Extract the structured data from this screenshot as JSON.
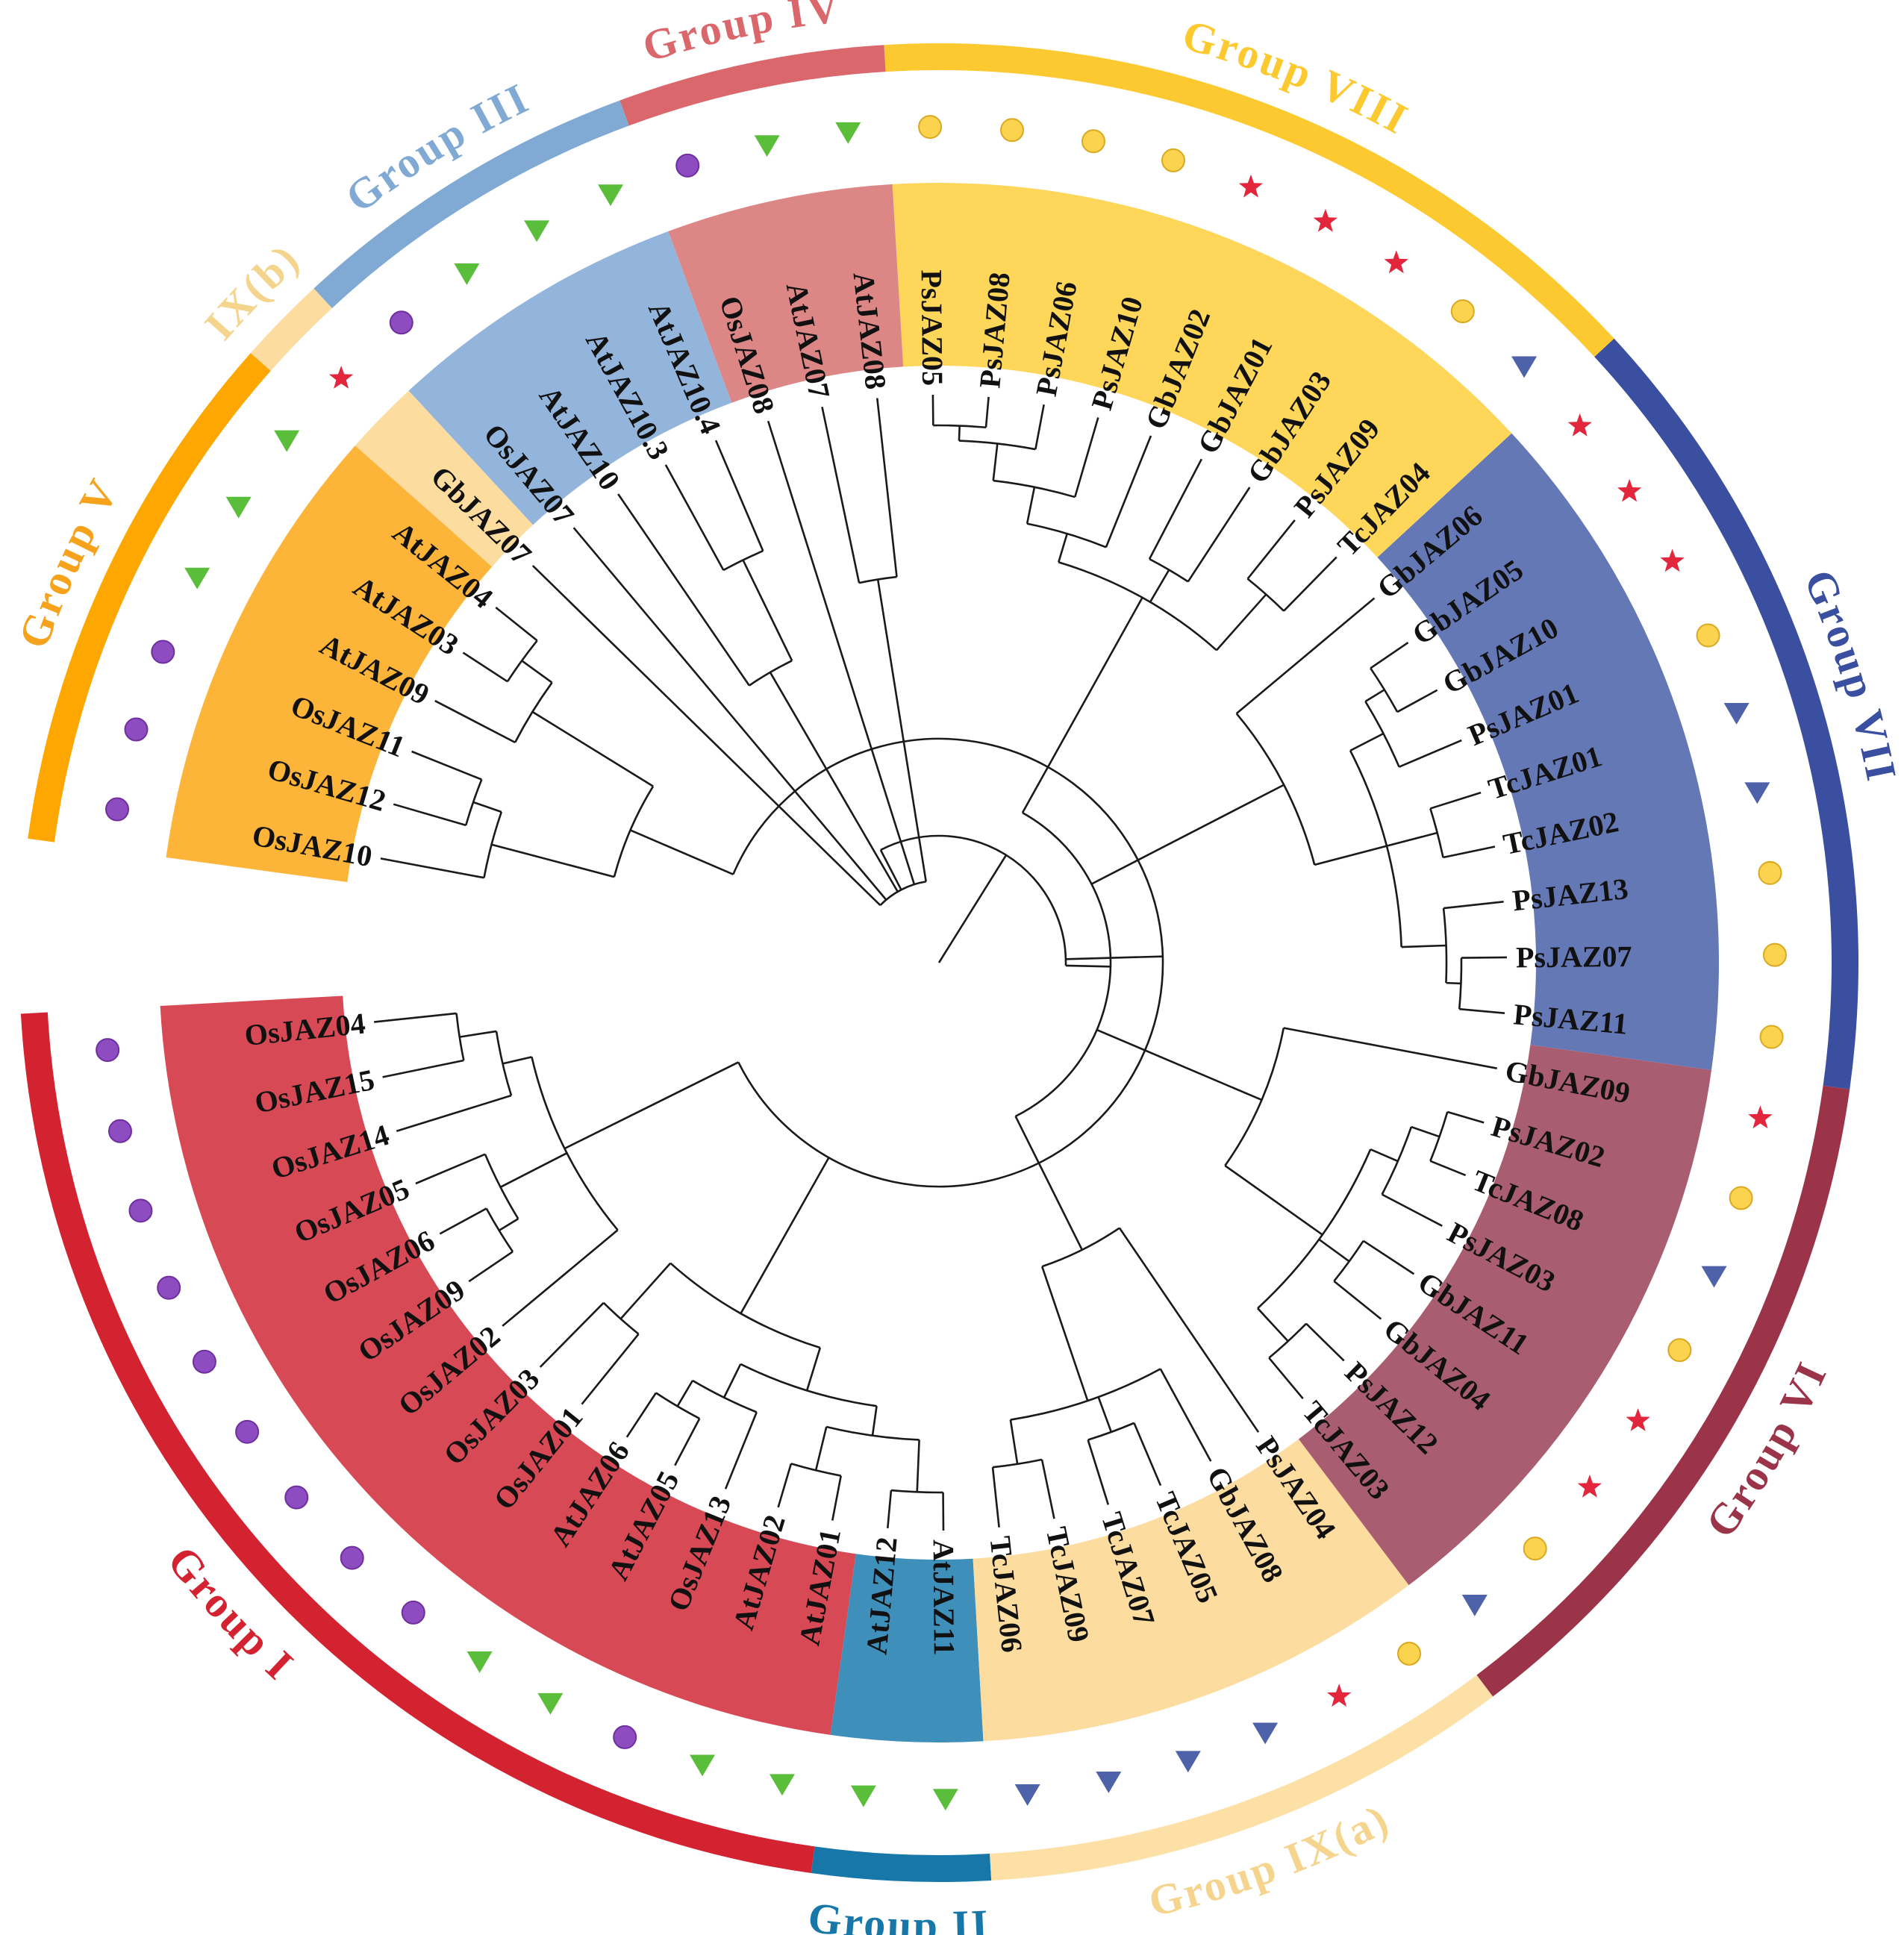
{
  "figure": {
    "type": "circular phylogenetic tree",
    "title": ""
  },
  "colors": {
    "group_I": "#d74a55",
    "group_I_outer": "#d32230",
    "group_II": "#3f8fbb",
    "group_II_outer": "#1777a8",
    "group_IXa": "#fcdc9f",
    "group_IXa_outer": "#fde0a6",
    "group_VI": "#a95d70",
    "group_VI_outer": "#9c3449",
    "group_VII": "#6578b6",
    "group_VII_outer": "#3a4f9f",
    "group_VIII": "#fdd65a",
    "group_VIII_outer": "#fcca30",
    "group_IV": "#dd8686",
    "group_IV_outer": "#d9676b",
    "group_III": "#93b5db",
    "group_III_outer": "#80aad4",
    "group_IXb": "#fcdc9f",
    "group_IXb_outer": "#fcdc9f",
    "group_V": "#fcb439",
    "group_V_outer": "#fda700",
    "group_V_label": "#f6a21c",
    "group_IXb_label": "#f5d48e",
    "group_IXa_label": "#f5d48e",
    "marker_circle": "#8e4cc1",
    "marker_circle_yellow": "#fbd34f",
    "marker_triangle_green": "#5bbe3a",
    "marker_triangle_blue": "#4e62a9",
    "marker_star": "#e2263c"
  },
  "groups": [
    {
      "key": "group_I",
      "label": "Group I"
    },
    {
      "key": "group_II",
      "label": "Group II"
    },
    {
      "key": "group_IXa",
      "label": "Group IX(a)"
    },
    {
      "key": "group_VI",
      "label": "Group VI"
    },
    {
      "key": "group_VII",
      "label": "Group VII"
    },
    {
      "key": "group_VIII",
      "label": "Group VIII"
    },
    {
      "key": "group_IV",
      "label": "Group IV"
    },
    {
      "key": "group_III",
      "label": "Group III"
    },
    {
      "key": "group_IXb",
      "label": "IX(b)"
    },
    {
      "key": "group_V",
      "label": "Group V"
    }
  ],
  "leaves": [
    {
      "name": "OsJAZ04",
      "group": "group_I",
      "marker": "circle_purple"
    },
    {
      "name": "OsJAZ15",
      "group": "group_I",
      "marker": "circle_purple"
    },
    {
      "name": "OsJAZ14",
      "group": "group_I",
      "marker": "circle_purple"
    },
    {
      "name": "OsJAZ05",
      "group": "group_I",
      "marker": "circle_purple"
    },
    {
      "name": "OsJAZ06",
      "group": "group_I",
      "marker": "circle_purple"
    },
    {
      "name": "OsJAZ09",
      "group": "group_I",
      "marker": "circle_purple"
    },
    {
      "name": "OsJAZ02",
      "group": "group_I",
      "marker": "circle_purple"
    },
    {
      "name": "OsJAZ03",
      "group": "group_I",
      "marker": "circle_purple"
    },
    {
      "name": "OsJAZ01",
      "group": "group_I",
      "marker": "circle_purple"
    },
    {
      "name": "AtJAZ06",
      "group": "group_I",
      "marker": "triangle_green"
    },
    {
      "name": "AtJAZ05",
      "group": "group_I",
      "marker": "triangle_green"
    },
    {
      "name": "OsJAZ13",
      "group": "group_I",
      "marker": "circle_purple"
    },
    {
      "name": "AtJAZ02",
      "group": "group_I",
      "marker": "triangle_green"
    },
    {
      "name": "AtJAZ01",
      "group": "group_I",
      "marker": "triangle_green"
    },
    {
      "name": "AtJAZ12",
      "group": "group_II",
      "marker": "triangle_green"
    },
    {
      "name": "AtJAZ11",
      "group": "group_II",
      "marker": "triangle_green"
    },
    {
      "name": "TcJAZ06",
      "group": "group_IXa",
      "marker": "triangle_blue"
    },
    {
      "name": "TcJAZ09",
      "group": "group_IXa",
      "marker": "triangle_blue"
    },
    {
      "name": "TcJAZ07",
      "group": "group_IXa",
      "marker": "triangle_blue"
    },
    {
      "name": "TcJAZ05",
      "group": "group_IXa",
      "marker": "triangle_blue"
    },
    {
      "name": "GbJAZ08",
      "group": "group_IXa",
      "marker": "star"
    },
    {
      "name": "PsJAZ04",
      "group": "group_IXa",
      "marker": "circle_yellow"
    },
    {
      "name": "TcJAZ03",
      "group": "group_VI",
      "marker": "triangle_blue"
    },
    {
      "name": "PsJAZ12",
      "group": "group_VI",
      "marker": "circle_yellow"
    },
    {
      "name": "GbJAZ04",
      "group": "group_VI",
      "marker": "star"
    },
    {
      "name": "GbJAZ11",
      "group": "group_VI",
      "marker": "star"
    },
    {
      "name": "PsJAZ03",
      "group": "group_VI",
      "marker": "circle_yellow"
    },
    {
      "name": "TcJAZ08",
      "group": "group_VI",
      "marker": "triangle_blue"
    },
    {
      "name": "PsJAZ02",
      "group": "group_VI",
      "marker": "circle_yellow"
    },
    {
      "name": "GbJAZ09",
      "group": "group_VI",
      "marker": "star"
    },
    {
      "name": "PsJAZ11",
      "group": "group_VII",
      "marker": "circle_yellow"
    },
    {
      "name": "PsJAZ07",
      "group": "group_VII",
      "marker": "circle_yellow"
    },
    {
      "name": "PsJAZ13",
      "group": "group_VII",
      "marker": "circle_yellow"
    },
    {
      "name": "TcJAZ02",
      "group": "group_VII",
      "marker": "triangle_blue"
    },
    {
      "name": "TcJAZ01",
      "group": "group_VII",
      "marker": "triangle_blue"
    },
    {
      "name": "PsJAZ01",
      "group": "group_VII",
      "marker": "circle_yellow"
    },
    {
      "name": "GbJAZ10",
      "group": "group_VII",
      "marker": "star"
    },
    {
      "name": "GbJAZ05",
      "group": "group_VII",
      "marker": "star"
    },
    {
      "name": "GbJAZ06",
      "group": "group_VII",
      "marker": "star"
    },
    {
      "name": "TcJAZ04",
      "group": "group_VIII",
      "marker": "triangle_blue"
    },
    {
      "name": "PsJAZ09",
      "group": "group_VIII",
      "marker": "circle_yellow"
    },
    {
      "name": "GbJAZ03",
      "group": "group_VIII",
      "marker": "star"
    },
    {
      "name": "GbJAZ01",
      "group": "group_VIII",
      "marker": "star"
    },
    {
      "name": "GbJAZ02",
      "group": "group_VIII",
      "marker": "star"
    },
    {
      "name": "PsJAZ10",
      "group": "group_VIII",
      "marker": "circle_yellow"
    },
    {
      "name": "PsJAZ06",
      "group": "group_VIII",
      "marker": "circle_yellow"
    },
    {
      "name": "PsJAZ08",
      "group": "group_VIII",
      "marker": "circle_yellow"
    },
    {
      "name": "PsJAZ05",
      "group": "group_VIII",
      "marker": "circle_yellow"
    },
    {
      "name": "AtJAZ08",
      "group": "group_IV",
      "marker": "triangle_green"
    },
    {
      "name": "AtJAZ07",
      "group": "group_IV",
      "marker": "triangle_green"
    },
    {
      "name": "OsJAZ08",
      "group": "group_IV",
      "marker": "circle_purple"
    },
    {
      "name": "AtJAZ10.4",
      "group": "group_III",
      "marker": "triangle_green"
    },
    {
      "name": "AtJAZ10.3",
      "group": "group_III",
      "marker": "triangle_green"
    },
    {
      "name": "AtJAZ10",
      "group": "group_III",
      "marker": "triangle_green"
    },
    {
      "name": "OsJAZ07",
      "group": "group_III",
      "marker": "circle_purple"
    },
    {
      "name": "GbJAZ07",
      "group": "group_IXb",
      "marker": "star"
    },
    {
      "name": "AtJAZ04",
      "group": "group_V",
      "marker": "triangle_green"
    },
    {
      "name": "AtJAZ03",
      "group": "group_V",
      "marker": "triangle_green"
    },
    {
      "name": "AtJAZ09",
      "group": "group_V",
      "marker": "triangle_green"
    },
    {
      "name": "OsJAZ11",
      "group": "group_V",
      "marker": "circle_purple"
    },
    {
      "name": "OsJAZ12",
      "group": "group_V",
      "marker": "circle_purple"
    },
    {
      "name": "OsJAZ10",
      "group": "group_V",
      "marker": "circle_purple"
    }
  ]
}
